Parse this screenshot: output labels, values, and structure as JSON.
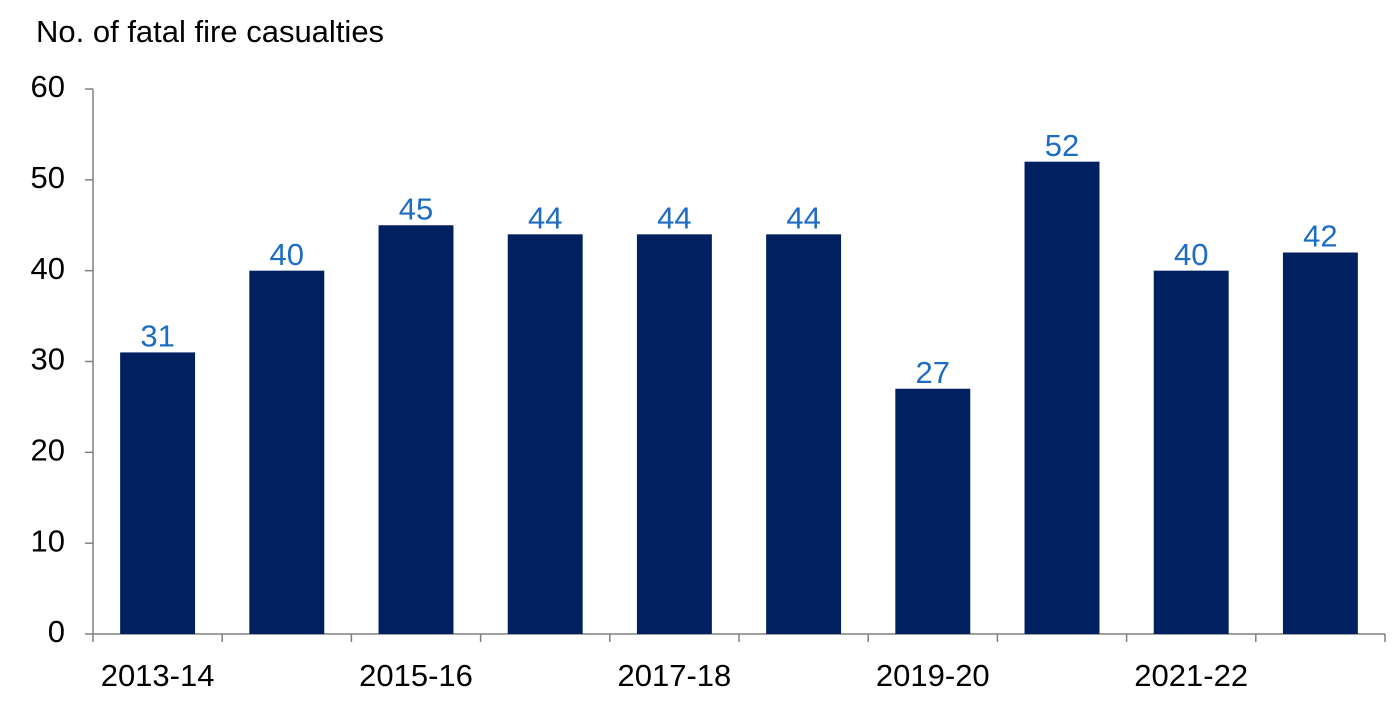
{
  "chart_data": {
    "type": "bar",
    "y_axis_label": "No. of fatal fire casualties",
    "categories": [
      "2013-14",
      null,
      "2015-16",
      null,
      "2017-18",
      null,
      "2019-20",
      null,
      "2021-22",
      null
    ],
    "values": [
      31,
      40,
      45,
      44,
      44,
      44,
      27,
      52,
      40,
      42
    ],
    "color": "#002060",
    "value_label_color": "#1f6cc4",
    "ylim": [
      0,
      60
    ],
    "yticks": [
      0,
      10,
      20,
      30,
      40,
      50,
      60
    ],
    "grid": false
  }
}
